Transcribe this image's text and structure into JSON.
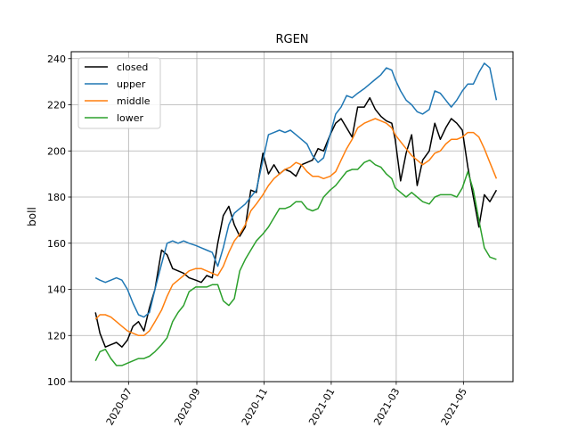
{
  "chart_data": {
    "type": "line",
    "title": "RGEN",
    "xlabel": "",
    "ylabel": "boll",
    "x_range": [
      "2020-05-10",
      "2021-06-15"
    ],
    "ylim": [
      100,
      243
    ],
    "grid": true,
    "legend_position": "top-left",
    "x_ticks": [
      "2020-07",
      "2020-09",
      "2020-11",
      "2021-01",
      "2021-03",
      "2021-05"
    ],
    "x_tick_dates": [
      "2020-07-01",
      "2020-09-01",
      "2020-11-01",
      "2021-01-01",
      "2021-03-01",
      "2021-05-01"
    ],
    "y_ticks": [
      100,
      120,
      140,
      160,
      180,
      200,
      220,
      240
    ],
    "series": [
      {
        "name": "closed",
        "color": "#000000",
        "dates": [
          "2020-06-01",
          "2020-06-05",
          "2020-06-10",
          "2020-06-15",
          "2020-06-20",
          "2020-06-25",
          "2020-06-30",
          "2020-07-05",
          "2020-07-10",
          "2020-07-15",
          "2020-07-20",
          "2020-07-25",
          "2020-07-31",
          "2020-08-05",
          "2020-08-10",
          "2020-08-15",
          "2020-08-20",
          "2020-08-25",
          "2020-08-31",
          "2020-09-05",
          "2020-09-10",
          "2020-09-15",
          "2020-09-20",
          "2020-09-25",
          "2020-09-30",
          "2020-10-05",
          "2020-10-10",
          "2020-10-15",
          "2020-10-20",
          "2020-10-25",
          "2020-10-31",
          "2020-11-05",
          "2020-11-10",
          "2020-11-15",
          "2020-11-20",
          "2020-11-25",
          "2020-11-30",
          "2020-12-05",
          "2020-12-10",
          "2020-12-15",
          "2020-12-20",
          "2020-12-25",
          "2020-12-31",
          "2021-01-05",
          "2021-01-10",
          "2021-01-15",
          "2021-01-20",
          "2021-01-25",
          "2021-01-31",
          "2021-02-05",
          "2021-02-10",
          "2021-02-15",
          "2021-02-20",
          "2021-02-25",
          "2021-02-28",
          "2021-03-05",
          "2021-03-10",
          "2021-03-15",
          "2021-03-20",
          "2021-03-25",
          "2021-03-31",
          "2021-04-05",
          "2021-04-10",
          "2021-04-15",
          "2021-04-20",
          "2021-04-25",
          "2021-04-30",
          "2021-05-05",
          "2021-05-10",
          "2021-05-15",
          "2021-05-20",
          "2021-05-25",
          "2021-05-31"
        ],
        "values": [
          130,
          121,
          115,
          116,
          117,
          115,
          118,
          124,
          126,
          122,
          132,
          140,
          157,
          155,
          149,
          148,
          147,
          145,
          144,
          143,
          146,
          145,
          160,
          172,
          176,
          168,
          163,
          167,
          183,
          182,
          199,
          190,
          194,
          190,
          192,
          191,
          189,
          194,
          195,
          196,
          201,
          200,
          207,
          212,
          214,
          210,
          206,
          219,
          219,
          223,
          218,
          215,
          213,
          212,
          205,
          187,
          199,
          207,
          185,
          196,
          200,
          212,
          205,
          210,
          214,
          212,
          209,
          193,
          180,
          167,
          181,
          178,
          183
        ]
      },
      {
        "name": "upper",
        "color": "#1f77b4",
        "dates": [
          "2020-06-01",
          "2020-06-05",
          "2020-06-10",
          "2020-06-15",
          "2020-06-20",
          "2020-06-25",
          "2020-06-30",
          "2020-07-05",
          "2020-07-10",
          "2020-07-15",
          "2020-07-20",
          "2020-07-25",
          "2020-07-31",
          "2020-08-05",
          "2020-08-10",
          "2020-08-15",
          "2020-08-20",
          "2020-08-25",
          "2020-08-31",
          "2020-09-05",
          "2020-09-10",
          "2020-09-15",
          "2020-09-20",
          "2020-09-25",
          "2020-09-30",
          "2020-10-05",
          "2020-10-10",
          "2020-10-15",
          "2020-10-20",
          "2020-10-25",
          "2020-10-31",
          "2020-11-05",
          "2020-11-10",
          "2020-11-15",
          "2020-11-20",
          "2020-11-25",
          "2020-11-30",
          "2020-12-05",
          "2020-12-10",
          "2020-12-15",
          "2020-12-20",
          "2020-12-25",
          "2020-12-31",
          "2021-01-05",
          "2021-01-10",
          "2021-01-15",
          "2021-01-20",
          "2021-01-25",
          "2021-01-31",
          "2021-02-05",
          "2021-02-10",
          "2021-02-15",
          "2021-02-20",
          "2021-02-25",
          "2021-02-28",
          "2021-03-05",
          "2021-03-10",
          "2021-03-15",
          "2021-03-20",
          "2021-03-25",
          "2021-03-31",
          "2021-04-05",
          "2021-04-10",
          "2021-04-15",
          "2021-04-20",
          "2021-04-25",
          "2021-04-30",
          "2021-05-05",
          "2021-05-10",
          "2021-05-15",
          "2021-05-20",
          "2021-05-25",
          "2021-05-31"
        ],
        "values": [
          145,
          144,
          143,
          144,
          145,
          144,
          140,
          134,
          129,
          128,
          130,
          140,
          151,
          160,
          161,
          160,
          161,
          160,
          159,
          158,
          157,
          156,
          150,
          158,
          168,
          173,
          175,
          177,
          180,
          183,
          196,
          207,
          208,
          209,
          208,
          209,
          207,
          205,
          203,
          198,
          195,
          197,
          207,
          216,
          219,
          224,
          223,
          225,
          227,
          229,
          231,
          233,
          236,
          235,
          231,
          226,
          222,
          220,
          217,
          216,
          218,
          226,
          225,
          222,
          219,
          222,
          226,
          229,
          229,
          234,
          238,
          236,
          222
        ]
      },
      {
        "name": "middle",
        "color": "#ff7f0e",
        "dates": [
          "2020-06-01",
          "2020-06-05",
          "2020-06-10",
          "2020-06-15",
          "2020-06-20",
          "2020-06-25",
          "2020-06-30",
          "2020-07-05",
          "2020-07-10",
          "2020-07-15",
          "2020-07-20",
          "2020-07-25",
          "2020-07-31",
          "2020-08-05",
          "2020-08-10",
          "2020-08-15",
          "2020-08-20",
          "2020-08-25",
          "2020-08-31",
          "2020-09-05",
          "2020-09-10",
          "2020-09-15",
          "2020-09-20",
          "2020-09-25",
          "2020-09-30",
          "2020-10-05",
          "2020-10-10",
          "2020-10-15",
          "2020-10-20",
          "2020-10-25",
          "2020-10-31",
          "2020-11-05",
          "2020-11-10",
          "2020-11-15",
          "2020-11-20",
          "2020-11-25",
          "2020-11-30",
          "2020-12-05",
          "2020-12-10",
          "2020-12-15",
          "2020-12-20",
          "2020-12-25",
          "2020-12-31",
          "2021-01-05",
          "2021-01-10",
          "2021-01-15",
          "2021-01-20",
          "2021-01-25",
          "2021-01-31",
          "2021-02-05",
          "2021-02-10",
          "2021-02-15",
          "2021-02-20",
          "2021-02-25",
          "2021-02-28",
          "2021-03-05",
          "2021-03-10",
          "2021-03-15",
          "2021-03-20",
          "2021-03-25",
          "2021-03-31",
          "2021-04-05",
          "2021-04-10",
          "2021-04-15",
          "2021-04-20",
          "2021-04-25",
          "2021-04-30",
          "2021-05-05",
          "2021-05-10",
          "2021-05-15",
          "2021-05-20",
          "2021-05-25",
          "2021-05-31"
        ],
        "values": [
          127,
          129,
          129,
          128,
          126,
          124,
          122,
          121,
          120,
          120,
          122,
          126,
          131,
          137,
          142,
          144,
          146,
          148,
          149,
          149,
          148,
          147,
          146,
          150,
          156,
          161,
          164,
          168,
          174,
          177,
          181,
          185,
          188,
          190,
          192,
          193,
          195,
          194,
          191,
          189,
          189,
          188,
          189,
          191,
          196,
          201,
          205,
          210,
          212,
          213,
          214,
          213,
          212,
          210,
          207,
          204,
          201,
          198,
          196,
          194,
          196,
          199,
          200,
          203,
          205,
          205,
          206,
          208,
          208,
          206,
          201,
          195,
          188
        ]
      },
      {
        "name": "lower",
        "color": "#2ca02c",
        "dates": [
          "2020-06-01",
          "2020-06-05",
          "2020-06-10",
          "2020-06-15",
          "2020-06-20",
          "2020-06-25",
          "2020-06-30",
          "2020-07-05",
          "2020-07-10",
          "2020-07-15",
          "2020-07-20",
          "2020-07-25",
          "2020-07-31",
          "2020-08-05",
          "2020-08-10",
          "2020-08-15",
          "2020-08-20",
          "2020-08-25",
          "2020-08-31",
          "2020-09-05",
          "2020-09-10",
          "2020-09-15",
          "2020-09-20",
          "2020-09-25",
          "2020-09-30",
          "2020-10-05",
          "2020-10-10",
          "2020-10-15",
          "2020-10-20",
          "2020-10-25",
          "2020-10-31",
          "2020-11-05",
          "2020-11-10",
          "2020-11-15",
          "2020-11-20",
          "2020-11-25",
          "2020-11-30",
          "2020-12-05",
          "2020-12-10",
          "2020-12-15",
          "2020-12-20",
          "2020-12-25",
          "2020-12-31",
          "2021-01-05",
          "2021-01-10",
          "2021-01-15",
          "2021-01-20",
          "2021-01-25",
          "2021-01-31",
          "2021-02-05",
          "2021-02-10",
          "2021-02-15",
          "2021-02-20",
          "2021-02-25",
          "2021-02-28",
          "2021-03-05",
          "2021-03-10",
          "2021-03-15",
          "2021-03-20",
          "2021-03-25",
          "2021-03-31",
          "2021-04-05",
          "2021-04-10",
          "2021-04-15",
          "2021-04-20",
          "2021-04-25",
          "2021-04-30",
          "2021-05-05",
          "2021-05-10",
          "2021-05-15",
          "2021-05-20",
          "2021-05-25",
          "2021-05-31"
        ],
        "values": [
          109,
          113,
          114,
          110,
          107,
          107,
          108,
          109,
          110,
          110,
          111,
          113,
          116,
          119,
          126,
          130,
          133,
          139,
          141,
          141,
          141,
          142,
          142,
          135,
          133,
          136,
          148,
          153,
          157,
          161,
          164,
          167,
          171,
          175,
          175,
          176,
          178,
          178,
          175,
          174,
          175,
          180,
          183,
          185,
          188,
          191,
          192,
          192,
          195,
          196,
          194,
          193,
          190,
          188,
          184,
          182,
          180,
          182,
          180,
          178,
          177,
          180,
          181,
          181,
          181,
          180,
          184,
          191,
          183,
          170,
          158,
          154,
          153
        ]
      }
    ]
  }
}
